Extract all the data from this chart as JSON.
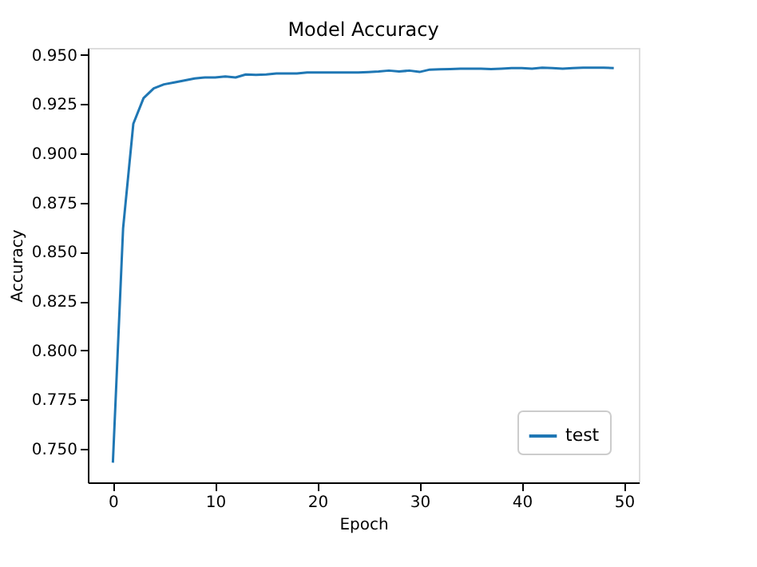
{
  "chart_data": {
    "type": "line",
    "title": "Model Accuracy",
    "xlabel": "Epoch",
    "ylabel": "Accuracy",
    "x": [
      0,
      1,
      2,
      3,
      4,
      5,
      6,
      7,
      8,
      9,
      10,
      11,
      12,
      13,
      14,
      15,
      16,
      17,
      18,
      19,
      20,
      21,
      22,
      23,
      24,
      25,
      26,
      27,
      28,
      29,
      30,
      31,
      32,
      33,
      34,
      35,
      36,
      37,
      38,
      39,
      40,
      41,
      42,
      43,
      44,
      45,
      46,
      47,
      48,
      49
    ],
    "series": [
      {
        "name": "test",
        "color": "#1f77b4",
        "values": [
          0.743,
          0.862,
          0.915,
          0.928,
          0.933,
          0.935,
          0.936,
          0.937,
          0.938,
          0.9385,
          0.9385,
          0.939,
          0.9385,
          0.94,
          0.9398,
          0.94,
          0.9405,
          0.9405,
          0.9405,
          0.941,
          0.941,
          0.941,
          0.941,
          0.941,
          0.941,
          0.9412,
          0.9415,
          0.942,
          0.9415,
          0.942,
          0.9413,
          0.9425,
          0.9427,
          0.9428,
          0.943,
          0.943,
          0.943,
          0.9428,
          0.943,
          0.9433,
          0.9433,
          0.943,
          0.9435,
          0.9433,
          0.943,
          0.9433,
          0.9435,
          0.9435,
          0.9435,
          0.9433
        ]
      }
    ],
    "xlim": [
      -2.45,
      51.45
    ],
    "ylim": [
      0.733,
      0.9535
    ],
    "xticks": [
      0,
      10,
      20,
      30,
      40,
      50
    ],
    "yticks": [
      {
        "value": 0.75,
        "label": "0.750"
      },
      {
        "value": 0.775,
        "label": "0.775"
      },
      {
        "value": 0.8,
        "label": "0.800"
      },
      {
        "value": 0.825,
        "label": "0.825"
      },
      {
        "value": 0.85,
        "label": "0.850"
      },
      {
        "value": 0.875,
        "label": "0.875"
      },
      {
        "value": 0.9,
        "label": "0.900"
      },
      {
        "value": 0.925,
        "label": "0.925"
      },
      {
        "value": 0.95,
        "label": "0.950"
      }
    ],
    "grid": false,
    "legend": "bottom right",
    "marker": "none",
    "line_style": "solid"
  }
}
